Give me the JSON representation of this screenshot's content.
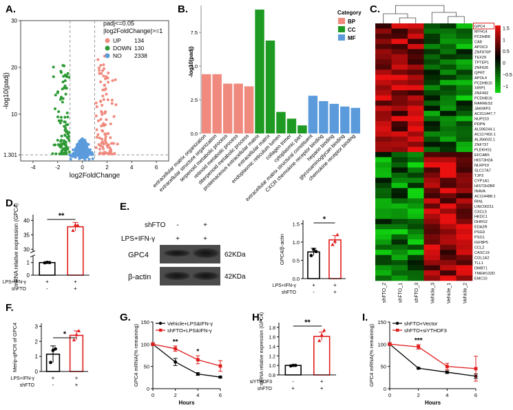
{
  "panels": {
    "A": "A.",
    "B": "B.",
    "C": "C.",
    "D": "D.",
    "E": "E.",
    "F": "F.",
    "G": "G.",
    "H": "H.",
    "I": "I."
  },
  "colors": {
    "up": "#f08a7e",
    "down": "#2e9a35",
    "no": "#5b9bdc",
    "bp": "#f08a7e",
    "cc": "#1e9a23",
    "mf": "#5b9bdc",
    "red": "#e01b1b",
    "heat_high": "#e01010",
    "heat_low": "#10d010"
  },
  "chart_data": [
    {
      "panel": "A",
      "type": "scatter",
      "title": "Volcano plot",
      "xlabel": "log2FoldChange",
      "ylabel": "-log10(padj)",
      "xlim": [
        -5,
        7
      ],
      "ylim": [
        0,
        30
      ],
      "x_ticks": [
        -4,
        -2,
        0,
        2,
        4,
        6
      ],
      "y_ticks": [
        1.301,
        10,
        20,
        30
      ],
      "y_tick_labels": [
        "1.301",
        "10",
        "20",
        "30"
      ],
      "threshold_lines": {
        "x": [
          -1,
          1
        ],
        "y": 1.301
      },
      "legend": {
        "title1": "padj<=0.05",
        "title2": "|log2FoldChange|>=1",
        "items": [
          {
            "label": "UP",
            "count": "134"
          },
          {
            "label": "DOWN",
            "count": "130"
          },
          {
            "label": "NO",
            "count": "2338"
          }
        ]
      },
      "groups": {
        "up": 134,
        "down": 130,
        "no": 2338
      }
    },
    {
      "panel": "B",
      "type": "bar",
      "ylabel": "-log10(padj)",
      "ylim": [
        0,
        9.5
      ],
      "y_ticks": [
        0.0,
        2.5,
        5.0,
        7.5
      ],
      "y_tick_labels": [
        "0.0",
        "2.5",
        "5.0",
        "7.5"
      ],
      "legend_title": "Category",
      "legend": [
        "BP",
        "CC",
        "MF"
      ],
      "categories": [
        "extracellular matrix organization",
        "extracellular structure organization",
        "terpenoid metabolic process",
        "retinoid metabolic process",
        "diterpenoid metabolic process",
        "proteinaceous extracellular matrix",
        "extracellular matrix",
        "endoplasmic reticulum lumen",
        "collagen trimer",
        "cytoplasmic part",
        "extracellular matrix structural constituent",
        "CXCR chemokine receptor binding",
        "heparin binding",
        "glycosaminoglycan binding",
        "chemokine receptor binding"
      ],
      "category_groups": [
        "BP",
        "BP",
        "BP",
        "BP",
        "BP",
        "CC",
        "CC",
        "CC",
        "CC",
        "CC",
        "MF",
        "MF",
        "MF",
        "MF",
        "MF"
      ],
      "values": [
        4.4,
        4.4,
        3.7,
        3.7,
        3.5,
        9.2,
        6.9,
        1.6,
        1.1,
        0.6,
        2.8,
        2.4,
        2.2,
        2.0,
        1.9
      ]
    },
    {
      "panel": "C",
      "type": "heatmap",
      "columns": [
        "shFTO_2",
        "shFTO_1",
        "shFTO_3",
        "Vehicle_3",
        "Vehicle_1",
        "Vehicle_2"
      ],
      "rows": [
        "GPC4",
        "MYH14",
        "PCDHB8",
        "CA8",
        "APOC3",
        "ZNF876P",
        "TEX29",
        "TPTEP1",
        "ZNF626",
        "QPRT",
        "APOL4",
        "PCDHB15",
        "XIRP1",
        "ZNF492",
        "PCDHB16",
        "RARRES2",
        "JAKMIP3",
        "AC011447.7",
        "NUP210",
        "PDPN",
        "AL596244.1",
        "AC117402.1",
        "AL356032.1",
        "ZNF737",
        "PLEKHS1",
        "EFCAB5",
        "HIST3H2A",
        "NLRP10",
        "SLC17A7",
        "TJP3",
        "CYP1A1",
        "HIST2H2BF",
        "INAVA",
        "AC114488.1",
        "RINL",
        "LINC00211",
        "CXCL5",
        "HKDC1",
        "DHRS2",
        "EDA2R",
        "PSG9",
        "PSG1",
        "IGFBP5",
        "CCL2",
        "CASC19",
        "COL1A2",
        "TLL1",
        "DMBT1",
        "TMEM132D",
        "EMC10"
      ],
      "highlight": "GPC4",
      "colorbar_ticks": [
        1.5,
        1,
        0.5,
        0,
        -0.5,
        -1
      ],
      "colorbar_labels": [
        "1.5",
        "1",
        "0.5",
        "0",
        "−0.5",
        "−1"
      ],
      "up_rows": 25
    },
    {
      "panel": "D",
      "type": "bar",
      "ylabel": "mRNA relative expression (GPC4)",
      "ylim": [
        0,
        42
      ],
      "y_ticks": [
        0,
        1,
        30,
        35,
        40
      ],
      "y_tick_labels": [
        "0",
        "1",
        "30",
        "35",
        "40"
      ],
      "axis_break": [
        1.5,
        29
      ],
      "groups": [
        "control",
        "shFTO"
      ],
      "values": [
        1.0,
        37.8
      ],
      "errors": [
        0.05,
        1.5
      ],
      "points": [
        [
          0.98,
          1.02,
          1.0
        ],
        [
          36.5,
          38.5,
          38.3
        ]
      ],
      "significance": "**",
      "row_labels": [
        "LPS+IFN-γ",
        "shFTO"
      ],
      "row_marks": [
        [
          "+",
          "+"
        ],
        [
          "-",
          "+"
        ]
      ]
    },
    {
      "panel": "E-right",
      "type": "bar",
      "ylabel": "GPC4/β-actin",
      "ylim": [
        0,
        1.6
      ],
      "y_ticks": [
        0.0,
        0.5,
        1.0,
        1.5
      ],
      "y_tick_labels": [
        "0.0",
        "0.5",
        "1.0",
        "1.5"
      ],
      "groups": [
        "control",
        "shFTO"
      ],
      "values": [
        0.73,
        1.06
      ],
      "errors": [
        0.1,
        0.12
      ],
      "points": [
        [
          0.63,
          0.8,
          0.74
        ],
        [
          0.93,
          1.02,
          1.2
        ]
      ],
      "significance": "*",
      "row_labels": [
        "LPS+IFN-γ",
        "shFTO"
      ],
      "row_marks": [
        [
          "+",
          "+"
        ],
        [
          "-",
          "+"
        ]
      ]
    },
    {
      "panel": "F",
      "type": "bar",
      "ylabel": "Merip-qPCR of GPC4",
      "ylim": [
        0,
        3.2
      ],
      "y_ticks": [
        0,
        1,
        2,
        3
      ],
      "y_tick_labels": [
        "0",
        "1",
        "2",
        "3"
      ],
      "groups": [
        "control",
        "shFTO"
      ],
      "values": [
        1.15,
        2.4
      ],
      "errors": [
        0.55,
        0.3
      ],
      "points": [
        [
          0.6,
          1.4,
          1.5
        ],
        [
          2.1,
          2.45,
          2.7
        ]
      ],
      "significance": "*",
      "row_labels": [
        "LPS+IFN-γ",
        "shFTO"
      ],
      "row_marks": [
        [
          "+",
          "+"
        ],
        [
          "-",
          "+"
        ]
      ]
    },
    {
      "panel": "G",
      "type": "line",
      "xlabel": "Hours",
      "ylabel": "GPC4 mRNA(% remaining)",
      "x": [
        0,
        2,
        4,
        6
      ],
      "xlim": [
        0,
        6
      ],
      "ylim": [
        0,
        150
      ],
      "x_ticks": [
        0,
        2,
        4,
        6
      ],
      "y_ticks": [
        0,
        50,
        100,
        150
      ],
      "series": [
        {
          "name": "Vehicle+LPS&IFN-γ",
          "values": [
            100,
            60,
            33,
            26
          ],
          "errors": [
            3,
            8,
            3,
            2
          ]
        },
        {
          "name": "shFTO+LPS&IFN-γ",
          "values": [
            100,
            90,
            65,
            51
          ],
          "errors": [
            3,
            6,
            9,
            12
          ]
        }
      ],
      "significance": [
        {
          "x": 2,
          "label": "**"
        },
        {
          "x": 4,
          "label": "*"
        }
      ]
    },
    {
      "panel": "H",
      "type": "bar",
      "ylabel": "mRNA relative expression (GPC4)",
      "ylim": [
        0.8,
        1.9
      ],
      "y_ticks": [
        0.8,
        1.0,
        1.2,
        1.4,
        1.6,
        1.8
      ],
      "y_tick_labels": [
        "0.8",
        "1.0",
        "1.2",
        "1.4",
        "1.6",
        "1.8"
      ],
      "groups": [
        "control",
        "siYTHDF3"
      ],
      "values": [
        1.0,
        1.61
      ],
      "errors": [
        0.01,
        0.09
      ],
      "points": [
        [
          0.99,
          1.0,
          1.0
        ],
        [
          1.52,
          1.64,
          1.74
        ]
      ],
      "significance": "**",
      "row_labels": [
        "siYTHDF3",
        "shFTO"
      ],
      "row_marks": [
        [
          "-",
          "+"
        ],
        [
          "+",
          "+"
        ]
      ]
    },
    {
      "panel": "I",
      "type": "line",
      "xlabel": "Hours",
      "ylabel": "GPC4 mRNA(% remaining)",
      "x": [
        0,
        2,
        4,
        6
      ],
      "xlim": [
        0,
        6
      ],
      "ylim": [
        0,
        150
      ],
      "x_ticks": [
        0,
        2,
        4,
        6
      ],
      "y_ticks": [
        0,
        50,
        100,
        150
      ],
      "series": [
        {
          "name": "shFTO+Vector",
          "values": [
            100,
            46,
            37,
            28
          ],
          "errors": [
            3,
            2,
            3,
            5
          ]
        },
        {
          "name": "shFTO+siYTHDF3",
          "values": [
            100,
            94,
            50,
            45
          ],
          "errors": [
            3,
            5,
            7,
            28
          ]
        }
      ],
      "significance": [
        {
          "x": 2,
          "label": "***"
        }
      ]
    }
  ],
  "western_blot": {
    "header": "shFTO",
    "condition": "LPS+IFN-γ",
    "lane_marks_shFTO": [
      "-",
      "+"
    ],
    "lane_marks_lps": [
      "+",
      "+"
    ],
    "rows": [
      {
        "protein": "GPC4",
        "size": "62KDa"
      },
      {
        "protein": "β-actin",
        "size": "42KDa"
      }
    ]
  }
}
